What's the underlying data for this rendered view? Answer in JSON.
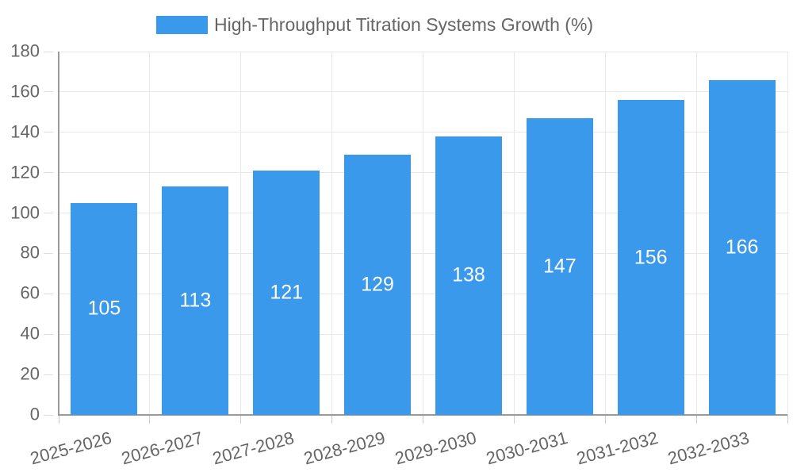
{
  "legend": {
    "label": "High-Throughput Titration Systems Growth (%)"
  },
  "colors": {
    "bar": "#3B99EC",
    "grid": "#E8E8E8",
    "axis": "#999999",
    "y_tick": "#DDDDDD",
    "x_tick": "#CCCCCC",
    "text": "#666666",
    "value_text": "#FFFFFF",
    "background": "#FFFFFF"
  },
  "chart_data": {
    "type": "bar",
    "title": "High-Throughput Titration Systems Growth (%)",
    "categories": [
      "2025-2026",
      "2026-2027",
      "2027-2028",
      "2028-2029",
      "2029-2030",
      "2030-2031",
      "2031-2032",
      "2032-2033"
    ],
    "values": [
      105,
      113,
      121,
      129,
      138,
      147,
      156,
      166
    ],
    "xlabel": "",
    "ylabel": "",
    "ylim": [
      0,
      180
    ],
    "ytick_step": 20,
    "yticks": [
      0,
      20,
      40,
      60,
      80,
      100,
      120,
      140,
      160,
      180
    ],
    "grid": true,
    "legend_position": "top-center",
    "value_label_position": "inside-center",
    "x_label_rotation_deg": -15
  }
}
